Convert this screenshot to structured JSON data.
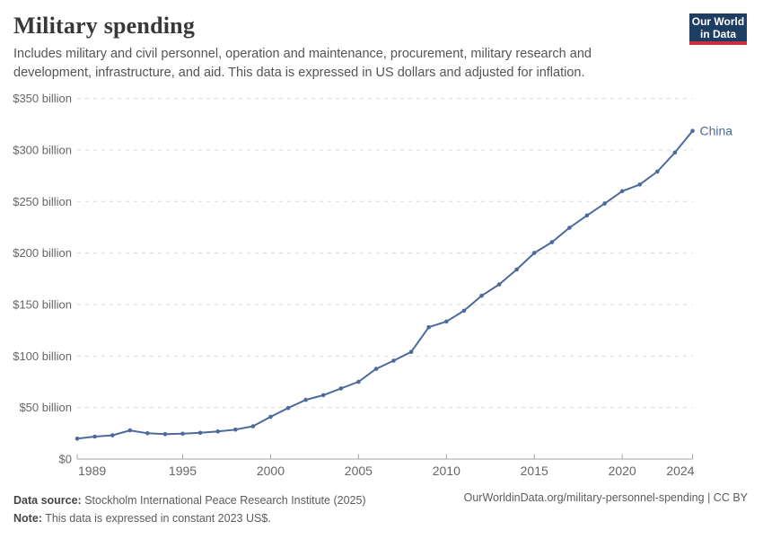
{
  "header": {
    "title": "Military spending",
    "subtitle": "Includes military and civil personnel, operation and maintenance, procurement, military research and development, infrastructure, and aid. This data is expressed in US dollars and adjusted for inflation.",
    "logo_line1": "Our World",
    "logo_line2": "in Data"
  },
  "colors": {
    "line": "#4c6a9c",
    "logo_navy": "#1d3d63",
    "logo_red": "#c9303e",
    "grid": "#dadada",
    "axis": "#a5a5a5",
    "tick_text": "#666666"
  },
  "chart_data": {
    "type": "line",
    "title": "Military spending",
    "unit": "constant 2023 US$, billions",
    "grid": "horizontal dashed",
    "legend_position": "end-of-line label",
    "x": [
      1989,
      1990,
      1991,
      1992,
      1993,
      1994,
      1995,
      1996,
      1997,
      1998,
      1999,
      2000,
      2001,
      2002,
      2003,
      2004,
      2005,
      2006,
      2007,
      2008,
      2009,
      2010,
      2011,
      2012,
      2013,
      2014,
      2015,
      2016,
      2017,
      2018,
      2019,
      2020,
      2021,
      2022,
      2023,
      2024
    ],
    "series": [
      {
        "name": "China",
        "values": [
          19.8,
          21.8,
          23.0,
          27.8,
          25.0,
          24.2,
          24.6,
          25.5,
          26.8,
          28.6,
          31.8,
          41.0,
          49.5,
          57.5,
          62.0,
          68.5,
          75.0,
          87.5,
          95.5,
          104.0,
          128.0,
          133.5,
          144.0,
          158.5,
          169.5,
          184.0,
          200.0,
          210.5,
          224.5,
          236.5,
          248.0,
          260.0,
          266.5,
          279.0,
          297.5,
          318.5
        ]
      }
    ],
    "ylim": [
      0,
      350
    ],
    "yticks": [
      0,
      50,
      100,
      150,
      200,
      250,
      300,
      350
    ],
    "ytick_labels": [
      "$0",
      "$50 billion",
      "$100 billion",
      "$150 billion",
      "$200 billion",
      "$250 billion",
      "$300 billion",
      "$350 billion"
    ],
    "xticks": [
      1989,
      1995,
      2000,
      2005,
      2010,
      2015,
      2020,
      2024
    ],
    "xlabel": "",
    "ylabel": ""
  },
  "footer": {
    "source_label": "Data source:",
    "source_value": "Stockholm International Peace Research Institute (2025)",
    "note_label": "Note:",
    "note_value": "This data is expressed in constant 2023 US$.",
    "url_text": "OurWorldinData.org/military-personnel-spending",
    "divider": "|",
    "license": "CC BY"
  }
}
